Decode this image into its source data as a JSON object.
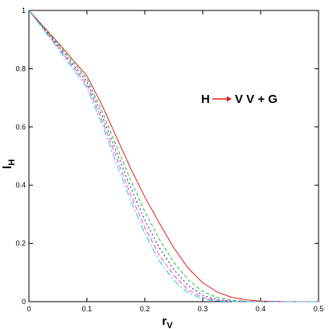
{
  "chart_data": {
    "type": "line",
    "title": "",
    "xlabel": "r",
    "xlabel_sub": "V",
    "ylabel": "l",
    "ylabel_sub": "H",
    "xlim": [
      0,
      0.5
    ],
    "ylim": [
      0,
      1
    ],
    "xticks": [
      "0",
      "0.1",
      "0.2",
      "0.3",
      "0.4",
      "0.5"
    ],
    "yticks": [
      "0",
      "0.2",
      "0.4",
      "0.6",
      "0.8",
      "1"
    ],
    "grid": false,
    "legend": "none",
    "annotation": {
      "left": "H",
      "right": "V V + G",
      "arrow_color": "#e02020"
    },
    "x": [
      0,
      0.05,
      0.1,
      0.125,
      0.15,
      0.175,
      0.2,
      0.225,
      0.25,
      0.275,
      0.3,
      0.325,
      0.35,
      0.375,
      0.4,
      0.45,
      0.5
    ],
    "series": [
      {
        "color": "#e02020",
        "dash": "solid",
        "values": [
          1.0,
          0.89,
          0.775,
          0.68,
          0.57,
          0.46,
          0.36,
          0.27,
          0.185,
          0.115,
          0.065,
          0.033,
          0.015,
          0.006,
          0.002,
          0.0,
          0.0
        ]
      },
      {
        "color": "#20c020",
        "dash": "4,3",
        "values": [
          1.0,
          0.885,
          0.765,
          0.66,
          0.54,
          0.42,
          0.31,
          0.215,
          0.135,
          0.075,
          0.035,
          0.014,
          0.005,
          0.001,
          0.0,
          0.0,
          0.0
        ]
      },
      {
        "color": "#2020c0",
        "dash": "2,3",
        "values": [
          1.0,
          0.88,
          0.755,
          0.645,
          0.52,
          0.395,
          0.28,
          0.185,
          0.11,
          0.055,
          0.022,
          0.007,
          0.002,
          0.0,
          0.0,
          0.0,
          0.0
        ]
      },
      {
        "color": "#ff40d0",
        "dash": "6,3",
        "values": [
          1.0,
          0.875,
          0.745,
          0.63,
          0.5,
          0.37,
          0.255,
          0.16,
          0.09,
          0.04,
          0.014,
          0.004,
          0.001,
          0.0,
          0.0,
          0.0,
          0.0
        ]
      },
      {
        "color": "#20c8d8",
        "dash": "8,3,2,3",
        "values": [
          1.0,
          0.87,
          0.735,
          0.615,
          0.48,
          0.35,
          0.235,
          0.14,
          0.073,
          0.03,
          0.009,
          0.002,
          0.0,
          0.0,
          0.0,
          0.0,
          0.0
        ]
      }
    ]
  }
}
